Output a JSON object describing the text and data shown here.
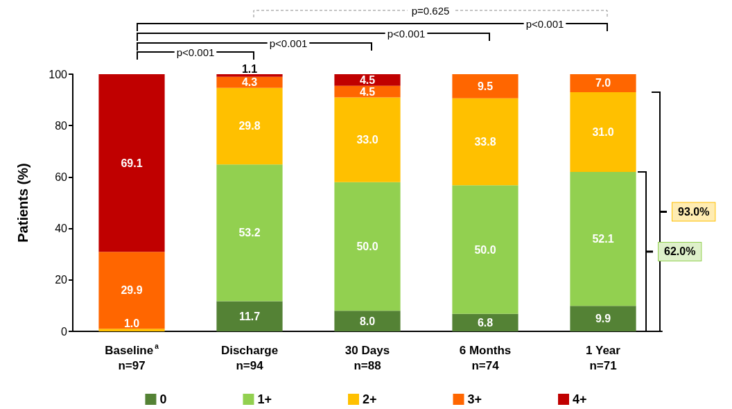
{
  "chart_data": {
    "type": "bar",
    "stacked": true,
    "ylabel": "Patients (%)",
    "categories": [
      "Baseline$^{a}$\nn=97",
      "Discharge\nn=94",
      "30 Days\nn=88",
      "6 Months\nn=74",
      "1 Year\nn=71"
    ],
    "series": [
      {
        "name": "0",
        "color": "#548235",
        "values": [
          null,
          11.7,
          8.0,
          6.8,
          9.9
        ],
        "value_labels": [
          null,
          "11.7",
          "8.0",
          "6.8",
          "9.9"
        ]
      },
      {
        "name": "1+",
        "color": "#92d050",
        "values": [
          null,
          53.2,
          50.0,
          50.0,
          52.1
        ],
        "value_labels": [
          null,
          "53.2",
          "50.0",
          "50.0",
          "52.1"
        ]
      },
      {
        "name": "2+",
        "color": "#ffc000",
        "values": [
          1.0,
          29.8,
          33.0,
          33.8,
          31.0
        ],
        "value_labels": [
          "1.0",
          "29.8",
          "33.0",
          "33.8",
          "31.0"
        ]
      },
      {
        "name": "3+",
        "color": "#ff6600",
        "values": [
          29.9,
          4.3,
          4.5,
          9.5,
          7.0
        ],
        "value_labels": [
          "29.9",
          "4.3",
          "4.5",
          "9.5",
          "7.0"
        ]
      },
      {
        "name": "4+",
        "color": "#c00000",
        "values": [
          69.1,
          1.1,
          4.5,
          null,
          null
        ],
        "value_labels": [
          "69.1",
          "1.1",
          "4.5",
          null,
          null
        ]
      }
    ],
    "ylim": [
      0,
      100
    ],
    "yticks": [
      0,
      20,
      40,
      60,
      80,
      100
    ],
    "grid": false,
    "legend": "bottom",
    "annotations": [
      "p<0.001",
      "p<0.001",
      "p<0.001",
      "p<0.001",
      "p=0.625",
      "93.0%",
      "62.0%"
    ]
  }
}
